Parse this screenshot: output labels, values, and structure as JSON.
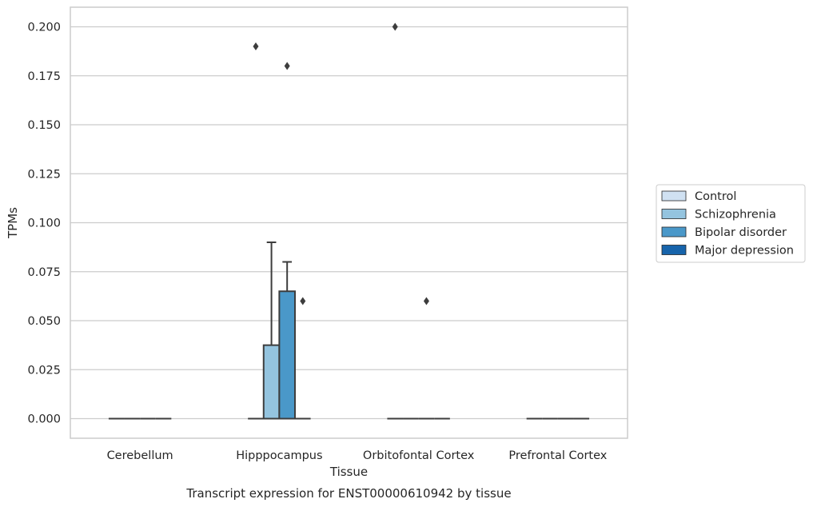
{
  "chart_data": {
    "type": "box",
    "caption": "Transcript expression for ENST00000610942 by tissue",
    "xlabel": "Tissue",
    "ylabel": "TPMs",
    "ylim": [
      -0.01,
      0.21
    ],
    "y_ticks": [
      0.0,
      0.025,
      0.05,
      0.075,
      0.1,
      0.125,
      0.15,
      0.175,
      0.2
    ],
    "y_tick_labels": [
      "0.000",
      "0.025",
      "0.050",
      "0.075",
      "0.100",
      "0.125",
      "0.150",
      "0.175",
      "0.200"
    ],
    "grid": "horizontal",
    "legend_position": "right",
    "categories": [
      "Cerebellum",
      "Hipppocampus",
      "Orbitofontal Cortex",
      "Prefrontal Cortex"
    ],
    "series": [
      {
        "name": "Control",
        "color": "#d0e1f2",
        "boxes": [
          {
            "category": "Cerebellum",
            "whisker_low": 0,
            "q1": 0,
            "median": 0,
            "q3": 0,
            "whisker_high": 0,
            "outliers": []
          },
          {
            "category": "Hipppocampus",
            "whisker_low": 0,
            "q1": 0,
            "median": 0,
            "q3": 0,
            "whisker_high": 0,
            "outliers": [
              0.19
            ]
          },
          {
            "category": "Orbitofontal Cortex",
            "whisker_low": 0,
            "q1": 0,
            "median": 0,
            "q3": 0,
            "whisker_high": 0,
            "outliers": [
              0.2
            ]
          },
          {
            "category": "Prefrontal Cortex",
            "whisker_low": 0,
            "q1": 0,
            "median": 0,
            "q3": 0,
            "whisker_high": 0,
            "outliers": []
          }
        ]
      },
      {
        "name": "Schizophrenia",
        "color": "#94c4df",
        "boxes": [
          {
            "category": "Cerebellum",
            "whisker_low": 0,
            "q1": 0,
            "median": 0,
            "q3": 0,
            "whisker_high": 0,
            "outliers": []
          },
          {
            "category": "Hipppocampus",
            "whisker_low": 0,
            "q1": 0,
            "median": 0,
            "q3": 0.0375,
            "whisker_high": 0.09,
            "outliers": []
          },
          {
            "category": "Orbitofontal Cortex",
            "whisker_low": 0,
            "q1": 0,
            "median": 0,
            "q3": 0,
            "whisker_high": 0,
            "outliers": []
          },
          {
            "category": "Prefrontal Cortex",
            "whisker_low": 0,
            "q1": 0,
            "median": 0,
            "q3": 0,
            "whisker_high": 0,
            "outliers": []
          }
        ]
      },
      {
        "name": "Bipolar disorder",
        "color": "#4a98c9",
        "boxes": [
          {
            "category": "Cerebellum",
            "whisker_low": 0,
            "q1": 0,
            "median": 0,
            "q3": 0,
            "whisker_high": 0,
            "outliers": []
          },
          {
            "category": "Hipppocampus",
            "whisker_low": 0,
            "q1": 0,
            "median": 0,
            "q3": 0.065,
            "whisker_high": 0.08,
            "outliers": [
              0.18
            ]
          },
          {
            "category": "Orbitofontal Cortex",
            "whisker_low": 0,
            "q1": 0,
            "median": 0,
            "q3": 0,
            "whisker_high": 0,
            "outliers": [
              0.06
            ]
          },
          {
            "category": "Prefrontal Cortex",
            "whisker_low": 0,
            "q1": 0,
            "median": 0,
            "q3": 0,
            "whisker_high": 0,
            "outliers": []
          }
        ]
      },
      {
        "name": "Major depression",
        "color": "#1764ab",
        "boxes": [
          {
            "category": "Cerebellum",
            "whisker_low": 0,
            "q1": 0,
            "median": 0,
            "q3": 0,
            "whisker_high": 0,
            "outliers": []
          },
          {
            "category": "Hipppocampus",
            "whisker_low": 0,
            "q1": 0,
            "median": 0,
            "q3": 0,
            "whisker_high": 0,
            "outliers": [
              0.06
            ]
          },
          {
            "category": "Orbitofontal Cortex",
            "whisker_low": 0,
            "q1": 0,
            "median": 0,
            "q3": 0,
            "whisker_high": 0,
            "outliers": []
          },
          {
            "category": "Prefrontal Cortex",
            "whisker_low": 0,
            "q1": 0,
            "median": 0,
            "q3": 0,
            "whisker_high": 0,
            "outliers": []
          }
        ]
      }
    ]
  }
}
